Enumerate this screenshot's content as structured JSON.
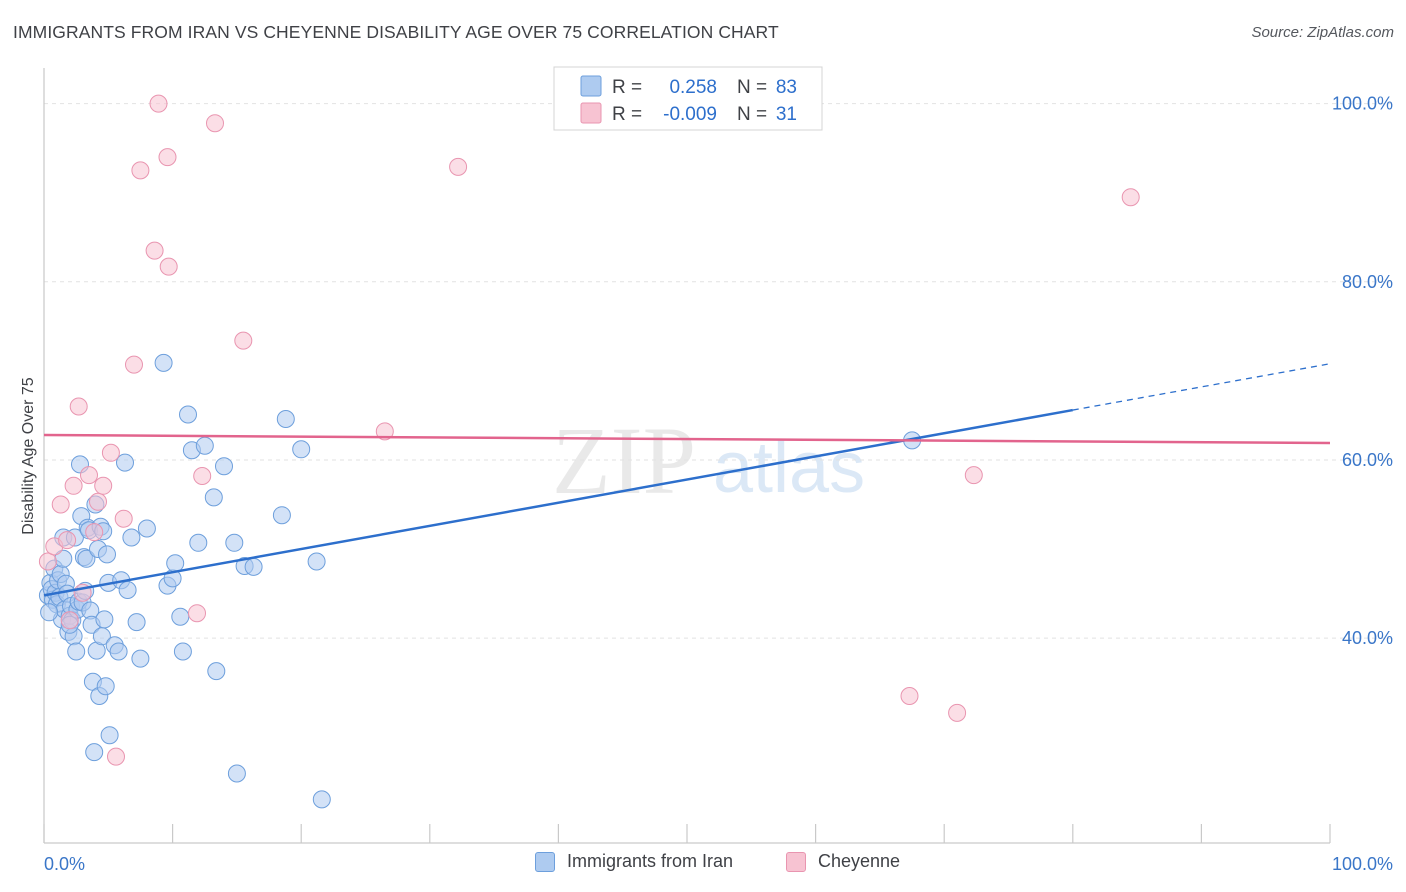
{
  "header": {
    "title": "IMMIGRANTS FROM IRAN VS CHEYENNE DISABILITY AGE OVER 75 CORRELATION CHART",
    "source": "Source: ZipAtlas.com"
  },
  "watermark": {
    "zip": "ZIP",
    "atlas": "atlas"
  },
  "colors": {
    "blue_fill": "#aecbf0",
    "blue_stroke": "#6d9fdc",
    "blue_line": "#2d6fcc",
    "pink_fill": "#f7c3d2",
    "pink_stroke": "#e995b0",
    "pink_line": "#e2648d",
    "tick_text": "#3a76c8",
    "grid": "#e2e2e2",
    "axis": "#c9c9c9"
  },
  "chart_data": {
    "type": "scatter",
    "title": "IMMIGRANTS FROM IRAN VS CHEYENNE DISABILITY AGE OVER 75 CORRELATION CHART",
    "xlabel": "",
    "ylabel": "Disability Age Over 75",
    "xlim": [
      0,
      100
    ],
    "ylim": [
      17,
      104
    ],
    "x_tick_labels": [
      "0.0%",
      "100.0%"
    ],
    "y_ticks": [
      40,
      60,
      80,
      100
    ],
    "y_tick_labels": [
      "40.0%",
      "60.0%",
      "80.0%",
      "100.0%"
    ],
    "grid": true,
    "legend_stats": [
      {
        "r_label": "R =",
        "r_value": "0.258",
        "n_label": "N =",
        "n_value": "83"
      },
      {
        "r_label": "R =",
        "r_value": "-0.009",
        "n_label": "N =",
        "n_value": "31"
      }
    ],
    "series": [
      {
        "name": "Immigrants from Iran",
        "color": "#aecbf0",
        "trend": {
          "x0": 0,
          "y0": 44.8,
          "x1": 80,
          "y1": 65.6,
          "dash_to_x": 100,
          "dash_to_y": 70.8
        },
        "points": [
          [
            0.3,
            44.8
          ],
          [
            0.5,
            46.2
          ],
          [
            0.6,
            45.5
          ],
          [
            0.7,
            44.3
          ],
          [
            0.8,
            47.8
          ],
          [
            0.9,
            45.1
          ],
          [
            1.0,
            43.8
          ],
          [
            1.1,
            46.5
          ],
          [
            1.2,
            44.6
          ],
          [
            1.3,
            47.2
          ],
          [
            1.4,
            42.1
          ],
          [
            1.5,
            51.3
          ],
          [
            1.6,
            43.2
          ],
          [
            1.7,
            46.1
          ],
          [
            1.8,
            45.0
          ],
          [
            1.9,
            40.7
          ],
          [
            2.0,
            42.5
          ],
          [
            2.1,
            43.6
          ],
          [
            2.2,
            42.0
          ],
          [
            2.3,
            40.2
          ],
          [
            2.4,
            51.3
          ],
          [
            2.5,
            38.5
          ],
          [
            2.6,
            43.2
          ],
          [
            2.7,
            44.1
          ],
          [
            2.8,
            59.5
          ],
          [
            2.9,
            53.7
          ],
          [
            3.0,
            44.0
          ],
          [
            3.1,
            49.1
          ],
          [
            3.2,
            45.3
          ],
          [
            3.3,
            48.9
          ],
          [
            3.4,
            52.4
          ],
          [
            3.5,
            52.1
          ],
          [
            3.6,
            43.1
          ],
          [
            3.7,
            41.5
          ],
          [
            3.8,
            35.1
          ],
          [
            3.9,
            27.2
          ],
          [
            4.0,
            55.0
          ],
          [
            4.1,
            38.6
          ],
          [
            4.2,
            50.0
          ],
          [
            4.3,
            33.5
          ],
          [
            4.4,
            52.5
          ],
          [
            4.5,
            40.2
          ],
          [
            4.6,
            52.0
          ],
          [
            4.7,
            42.1
          ],
          [
            4.8,
            34.6
          ],
          [
            4.9,
            49.4
          ],
          [
            5.0,
            46.2
          ],
          [
            5.1,
            29.1
          ],
          [
            5.5,
            39.2
          ],
          [
            5.8,
            38.5
          ],
          [
            6.0,
            46.5
          ],
          [
            6.3,
            59.7
          ],
          [
            6.5,
            45.4
          ],
          [
            6.8,
            51.3
          ],
          [
            7.2,
            41.8
          ],
          [
            7.5,
            37.7
          ],
          [
            8.0,
            52.3
          ],
          [
            9.3,
            70.9
          ],
          [
            9.6,
            45.9
          ],
          [
            10.0,
            46.7
          ],
          [
            10.2,
            48.4
          ],
          [
            10.6,
            42.4
          ],
          [
            10.8,
            38.5
          ],
          [
            11.2,
            65.1
          ],
          [
            11.5,
            61.1
          ],
          [
            12.0,
            50.7
          ],
          [
            12.5,
            61.6
          ],
          [
            13.2,
            55.8
          ],
          [
            13.4,
            36.3
          ],
          [
            14.0,
            59.3
          ],
          [
            14.8,
            50.7
          ],
          [
            15.0,
            24.8
          ],
          [
            15.6,
            48.1
          ],
          [
            16.3,
            48.0
          ],
          [
            18.5,
            53.8
          ],
          [
            18.8,
            64.6
          ],
          [
            20.0,
            61.2
          ],
          [
            21.2,
            48.6
          ],
          [
            21.6,
            21.9
          ],
          [
            67.5,
            62.2
          ],
          [
            0.4,
            42.9
          ],
          [
            1.5,
            48.9
          ],
          [
            2.0,
            41.5
          ]
        ]
      },
      {
        "name": "Cheyenne",
        "color": "#f7c3d2",
        "trend": {
          "x0": 0,
          "y0": 62.8,
          "x1": 100,
          "y1": 61.9
        },
        "points": [
          [
            0.3,
            48.6
          ],
          [
            0.8,
            50.3
          ],
          [
            1.3,
            55.0
          ],
          [
            2.0,
            42.0
          ],
          [
            2.3,
            57.1
          ],
          [
            2.7,
            66.0
          ],
          [
            3.0,
            45.1
          ],
          [
            3.5,
            58.3
          ],
          [
            3.9,
            51.9
          ],
          [
            4.2,
            55.3
          ],
          [
            4.6,
            57.1
          ],
          [
            5.2,
            60.8
          ],
          [
            5.6,
            26.7
          ],
          [
            6.2,
            53.4
          ],
          [
            7.0,
            70.7
          ],
          [
            7.5,
            92.5
          ],
          [
            8.6,
            83.5
          ],
          [
            8.9,
            100.0
          ],
          [
            9.6,
            94.0
          ],
          [
            9.7,
            81.7
          ],
          [
            11.9,
            42.8
          ],
          [
            12.3,
            58.2
          ],
          [
            13.3,
            97.8
          ],
          [
            15.5,
            73.4
          ],
          [
            26.5,
            63.2
          ],
          [
            32.2,
            92.9
          ],
          [
            67.3,
            33.5
          ],
          [
            71.0,
            31.6
          ],
          [
            72.3,
            58.3
          ],
          [
            84.5,
            89.5
          ],
          [
            1.8,
            51.0
          ]
        ]
      }
    ]
  },
  "legend_bottom": [
    {
      "label": "Immigrants from Iran",
      "color": "#aecbf0",
      "stroke": "#6d9fdc"
    },
    {
      "label": "Cheyenne",
      "color": "#f7c3d2",
      "stroke": "#e995b0"
    }
  ]
}
